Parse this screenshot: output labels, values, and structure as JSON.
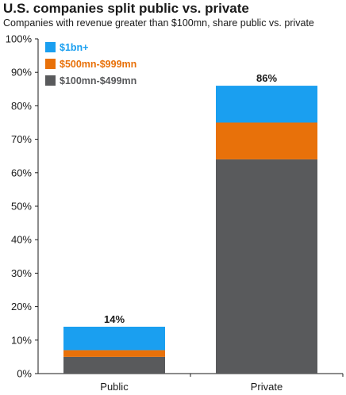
{
  "chart_data": {
    "type": "bar",
    "stacked": true,
    "title": "U.S. companies split public vs. private",
    "subtitle": "Companies with revenue greater than $100mn, share public vs. private",
    "categories": [
      "Public",
      "Private"
    ],
    "series": [
      {
        "name": "$100mn-$499mn",
        "color": "#595a5c",
        "values": [
          5,
          64
        ]
      },
      {
        "name": "$500mn-$999mn",
        "color": "#e8710a",
        "values": [
          2,
          11
        ]
      },
      {
        "name": "$1bn+",
        "color": "#1a9ff0",
        "values": [
          7,
          11
        ]
      }
    ],
    "totals": [
      "14%",
      "86%"
    ],
    "ylim": [
      0,
      100
    ],
    "yticks": [
      "0%",
      "10%",
      "20%",
      "30%",
      "40%",
      "50%",
      "60%",
      "70%",
      "80%",
      "90%",
      "100%"
    ],
    "grid": false,
    "legend_position": "top-left",
    "xlabel": "",
    "ylabel": ""
  }
}
